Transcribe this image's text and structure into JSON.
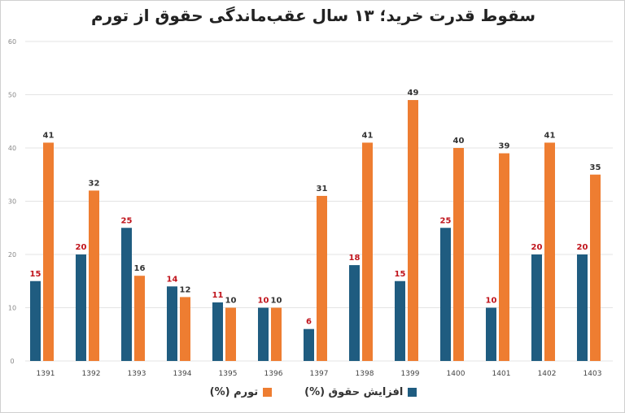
{
  "chart_data": {
    "type": "bar",
    "title": "سقوط قدرت خرید؛ ۱۳ سال عقب‌ماندگی حقوق از تورم",
    "categories": [
      "1391",
      "1392",
      "1393",
      "1394",
      "1395",
      "1396",
      "1397",
      "1398",
      "1399",
      "1400",
      "1401",
      "1402",
      "1403"
    ],
    "series": [
      {
        "name": "افزایش حقوق (%)",
        "color": "#1f5c80",
        "label_color": "#c0141c",
        "values": [
          15,
          20,
          25,
          14,
          11,
          10,
          6,
          18,
          15,
          25,
          10,
          20,
          20
        ]
      },
      {
        "name": "تورم (%)",
        "color": "#ee7d31",
        "label_color": "#333333",
        "values": [
          41,
          32,
          16,
          12,
          10,
          10,
          31,
          41,
          49,
          40,
          39,
          41,
          35
        ]
      }
    ],
    "ylim": [
      0,
      60
    ],
    "yticks": [
      0,
      10,
      20,
      30,
      40,
      50,
      60
    ],
    "grid": true,
    "legend": "bottom"
  }
}
